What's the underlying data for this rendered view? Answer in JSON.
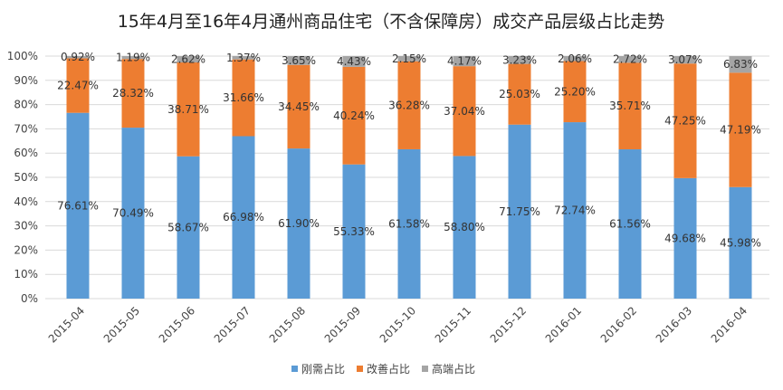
{
  "chart_data": {
    "type": "bar",
    "stacked": true,
    "title": "15年4月至16年4月通州商品住宅（不含保障房）成交产品层级占比走势",
    "xlabel": "",
    "ylabel": "",
    "ylim": [
      0,
      100
    ],
    "y_ticks": [
      "0%",
      "10%",
      "20%",
      "30%",
      "40%",
      "50%",
      "60%",
      "70%",
      "80%",
      "90%",
      "100%"
    ],
    "grid": true,
    "legend_position": "bottom",
    "categories": [
      "2015-04",
      "2015-05",
      "2015-06",
      "2015-07",
      "2015-08",
      "2015-09",
      "2015-10",
      "2015-11",
      "2015-12",
      "2016-01",
      "2016-02",
      "2016-03",
      "2016-04"
    ],
    "series": [
      {
        "name": "刚需占比",
        "color": "#5b9bd5",
        "values": [
          76.61,
          70.49,
          58.67,
          66.98,
          61.9,
          55.33,
          61.58,
          58.8,
          71.75,
          72.74,
          61.56,
          49.68,
          45.98
        ]
      },
      {
        "name": "改善占比",
        "color": "#ed7d31",
        "values": [
          22.47,
          28.32,
          38.71,
          31.66,
          34.45,
          40.24,
          36.28,
          37.04,
          25.03,
          25.2,
          35.71,
          47.25,
          47.19
        ]
      },
      {
        "name": "高端占比",
        "color": "#a5a5a5",
        "values": [
          0.92,
          1.19,
          2.62,
          1.37,
          3.65,
          4.43,
          2.15,
          4.17,
          3.23,
          2.06,
          2.72,
          3.07,
          6.83
        ]
      }
    ]
  }
}
